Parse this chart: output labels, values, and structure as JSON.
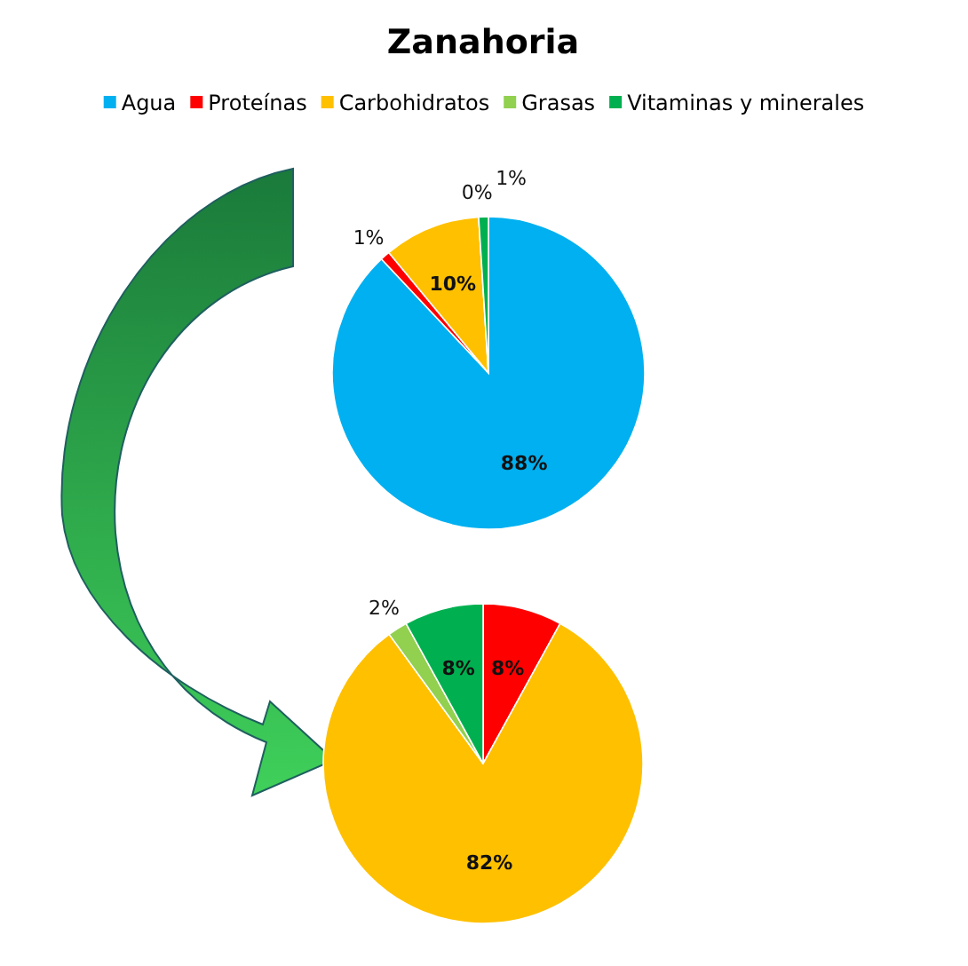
{
  "chart_data": [
    {
      "type": "pie",
      "title": "Zanahoria",
      "legend": "top",
      "categories": [
        "Agua",
        "Proteínas",
        "Carbohidratos",
        "Grasas",
        "Vitaminas y minerales"
      ],
      "values": [
        88,
        1,
        10,
        0,
        1
      ],
      "colors": [
        "#00b0f0",
        "#ff0000",
        "#ffc000",
        "#92d050",
        "#00b050"
      ],
      "value_labels": [
        "88%",
        "1%",
        "10%",
        "0%",
        "1%"
      ]
    },
    {
      "type": "pie",
      "legend": false,
      "categories": [
        null,
        null,
        null,
        null
      ],
      "values": [
        8,
        82,
        2,
        8
      ],
      "colors": [
        "#ff0000",
        "#ffc000",
        "#92d050",
        "#00b050"
      ],
      "value_labels": [
        "8%",
        "82%",
        "2%",
        "8%"
      ]
    }
  ]
}
